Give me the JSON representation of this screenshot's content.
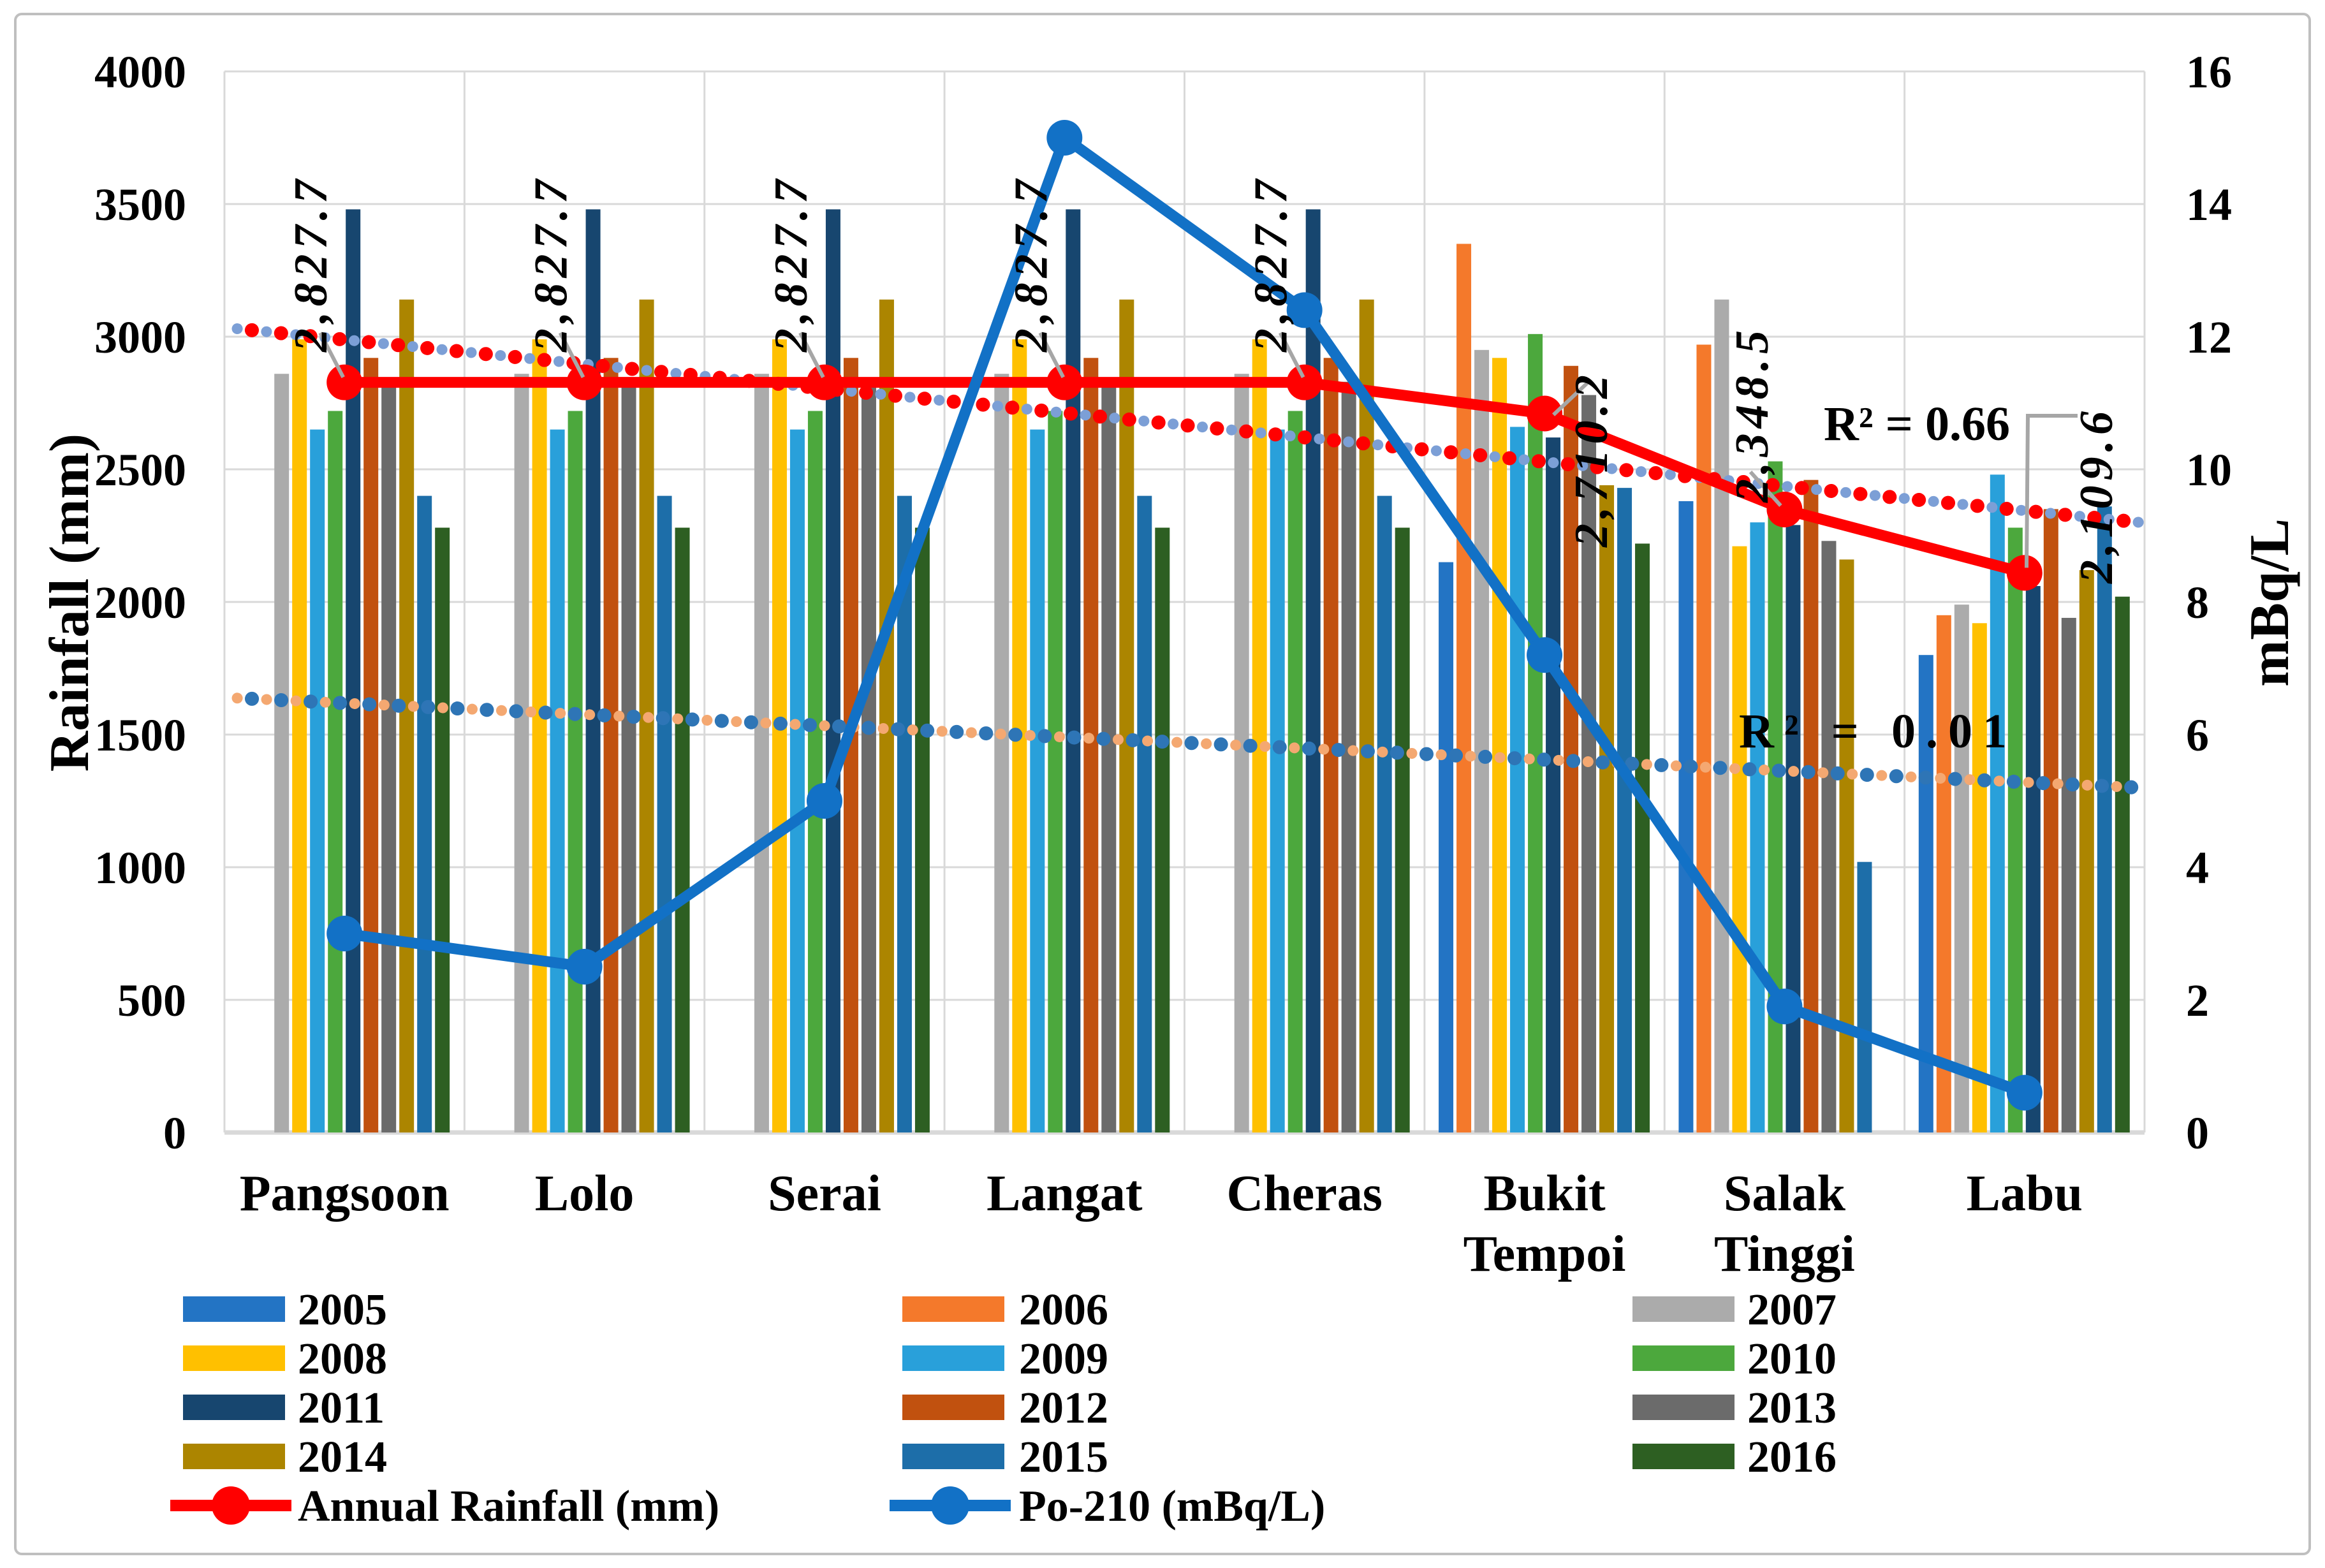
{
  "figure_title": "",
  "chart_data": {
    "type": "bar",
    "subtype": "combo-bar-line-dual-axis",
    "grid": "horizontal-and-category-boundaries",
    "categories": [
      "Pangsoon",
      "Lolo",
      "Serai",
      "Langat",
      "Cheras",
      "Bukit Tempoi",
      "Salak Tinggi",
      "Labu"
    ],
    "category_lines": [
      [
        "Pangsoon"
      ],
      [
        "Lolo"
      ],
      [
        "Serai"
      ],
      [
        "Langat"
      ],
      [
        "Cheras"
      ],
      [
        "Bukit",
        "Tempoi"
      ],
      [
        "Salak",
        "Tinggi"
      ],
      [
        "Labu"
      ]
    ],
    "left_axis": {
      "label": "Rainfall (mm)",
      "min": 0,
      "max": 4000,
      "step": 500,
      "ticks": [
        "4000",
        "3500",
        "3000",
        "2500",
        "2000",
        "1500",
        "1000",
        "500",
        "0"
      ]
    },
    "right_axis": {
      "label": "mBq/L",
      "min": 0,
      "max": 16,
      "step": 2,
      "ticks": [
        "16",
        "14",
        "12",
        "10",
        "8",
        "6",
        "4",
        "2",
        "0"
      ]
    },
    "series_colors": {
      "2005": "#2374C4",
      "2006": "#F4792B",
      "2007": "#ABABAB",
      "2008": "#FFC000",
      "2009": "#29A0DA",
      "2010": "#4CA83D",
      "2011": "#17466F",
      "2012": "#C1510F",
      "2013": "#6B6B6B",
      "2014": "#AC8500",
      "2015": "#1D6EA9",
      "2016": "#2D5F22"
    },
    "bar_series": [
      {
        "name": "2005",
        "values": [
          null,
          null,
          null,
          null,
          null,
          2150,
          2380,
          1800
        ]
      },
      {
        "name": "2006",
        "values": [
          null,
          null,
          null,
          null,
          null,
          3350,
          2970,
          1950
        ]
      },
      {
        "name": "2007",
        "values": [
          2860,
          2860,
          2860,
          2860,
          2860,
          2950,
          3140,
          1990
        ]
      },
      {
        "name": "2008",
        "values": [
          2990,
          2990,
          2990,
          2990,
          2990,
          2920,
          2210,
          1920
        ]
      },
      {
        "name": "2009",
        "values": [
          2650,
          2650,
          2650,
          2650,
          2650,
          2660,
          2300,
          2480
        ]
      },
      {
        "name": "2010",
        "values": [
          2720,
          2720,
          2720,
          2720,
          2720,
          3010,
          2530,
          2280
        ]
      },
      {
        "name": "2011",
        "values": [
          3480,
          3480,
          3480,
          3480,
          3480,
          2620,
          2290,
          2060
        ]
      },
      {
        "name": "2012",
        "values": [
          2920,
          2920,
          2920,
          2920,
          2920,
          2890,
          2460,
          2350
        ]
      },
      {
        "name": "2013",
        "values": [
          2830,
          2830,
          2830,
          2830,
          2830,
          2780,
          2230,
          1940
        ]
      },
      {
        "name": "2014",
        "values": [
          3140,
          3140,
          3140,
          3140,
          3140,
          2440,
          2160,
          2120
        ]
      },
      {
        "name": "2015",
        "values": [
          2400,
          2400,
          2400,
          2400,
          2400,
          2430,
          1020,
          2360
        ]
      },
      {
        "name": "2016",
        "values": [
          2280,
          2280,
          2280,
          2280,
          2280,
          2220,
          null,
          2020
        ]
      }
    ],
    "line_series": [
      {
        "name": "Annual Rainfall (mm)",
        "axis": "left",
        "color": "#FF0000",
        "values": [
          2827.7,
          2827.7,
          2827.7,
          2827.7,
          2827.7,
          2710.2,
          2348.5,
          2109.6
        ],
        "data_labels": [
          "2,827.7",
          "2,827.7",
          "2,827.7",
          "2,827.7",
          "2,827.7",
          "2,710.2",
          "2,348.5",
          "2,109.6"
        ]
      },
      {
        "name": "Po-210 (mBq/L)",
        "axis": "right",
        "color": "#1271C6",
        "values": [
          3.0,
          2.5,
          5.0,
          15.0,
          12.4,
          7.2,
          1.9,
          0.6
        ]
      }
    ],
    "trendlines": [
      {
        "series": "Annual Rainfall (mm)",
        "axis": "left",
        "start": 3030,
        "end": 2300,
        "r2_label": "R² = 0.66",
        "dot_color": "#FF0000",
        "alt_dot_color": "#7C9FD6"
      },
      {
        "series": "Po-210 (mBq/L)",
        "axis": "right",
        "start": 6.55,
        "end": 5.2,
        "r2_label": "R² = 0.01",
        "dot_color": "#2E75B6",
        "alt_dot_color": "#F4A871"
      }
    ],
    "legend": {
      "columns": [
        [
          "2005",
          "2008",
          "2011",
          "2014",
          "Annual Rainfall (mm)"
        ],
        [
          "2006",
          "2009",
          "2012",
          "2015",
          "Po-210 (mBq/L)"
        ],
        [
          "2007",
          "2010",
          "2013",
          "2016"
        ]
      ]
    },
    "style_colors": {
      "gridline": "#D9D9D9",
      "baseline": "#D9D9D9",
      "leader": "#A6A6A6",
      "border": "#BFBFBF"
    }
  }
}
